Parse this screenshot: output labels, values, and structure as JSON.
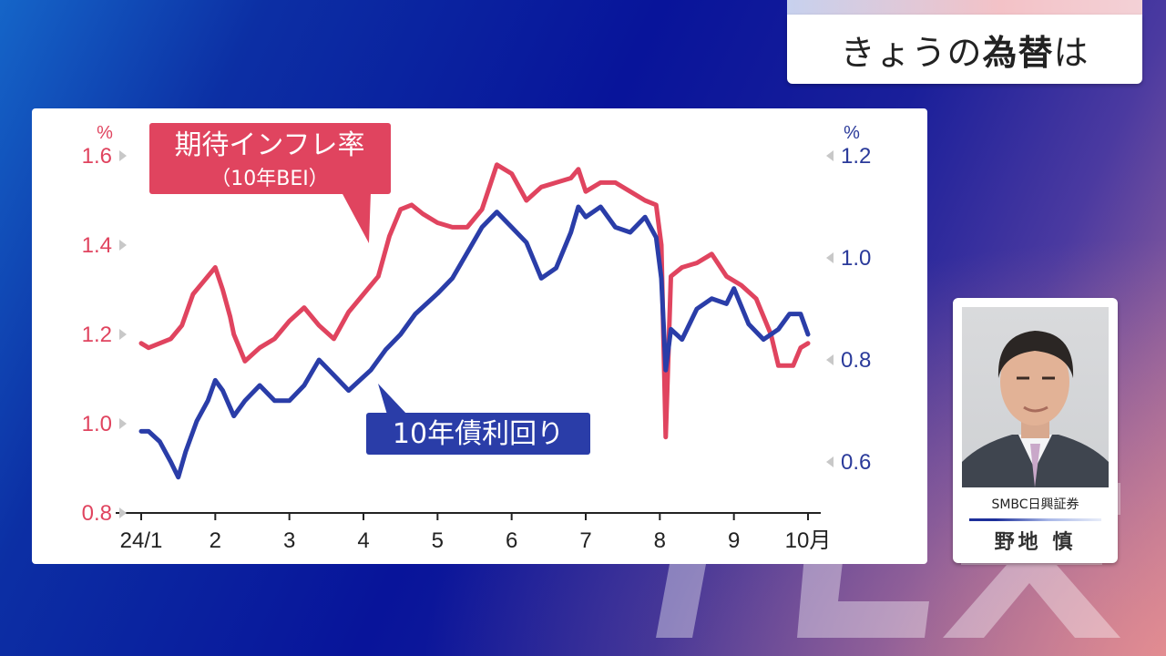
{
  "header": {
    "title_pre": "きょうの",
    "title_strong": "為替",
    "title_post": "は"
  },
  "colors": {
    "bei_series": "#e0445f",
    "yield_series": "#2a3da8",
    "callout_yield_bg": "#2a3da8",
    "callout_bei_bg": "#e0445f"
  },
  "chart_data": {
    "type": "line",
    "x_tick_labels": [
      "24/1",
      "2",
      "3",
      "4",
      "5",
      "6",
      "7",
      "8",
      "9",
      "10月"
    ],
    "left_axis": {
      "unit": "%",
      "ylim": [
        0.8,
        1.6
      ],
      "ticks": [
        "0.8",
        "1.0",
        "1.2",
        "1.4",
        "1.6"
      ]
    },
    "right_axis": {
      "unit": "%",
      "ylim": [
        0.5,
        1.2
      ],
      "ticks": [
        "0.6",
        "0.8",
        "1.0",
        "1.2"
      ]
    },
    "grid": false,
    "series": [
      {
        "name": "期待インフレ率",
        "sublabel": "（10年BEI）",
        "axis": "left",
        "x": [
          1.0,
          1.1,
          1.25,
          1.4,
          1.55,
          1.7,
          1.85,
          2.0,
          2.1,
          2.2,
          2.25,
          2.4,
          2.6,
          2.8,
          3.0,
          3.2,
          3.4,
          3.6,
          3.8,
          4.0,
          4.1,
          4.2,
          4.35,
          4.5,
          4.65,
          4.8,
          5.0,
          5.2,
          5.4,
          5.6,
          5.7,
          5.8,
          6.0,
          6.2,
          6.4,
          6.6,
          6.8,
          6.9,
          7.0,
          7.2,
          7.4,
          7.6,
          7.8,
          7.95,
          8.02,
          8.08,
          8.15,
          8.3,
          8.5,
          8.7,
          8.9,
          9.1,
          9.3,
          9.5,
          9.6,
          9.8,
          9.9,
          10.0
        ],
        "values": [
          1.18,
          1.17,
          1.18,
          1.19,
          1.22,
          1.29,
          1.32,
          1.35,
          1.3,
          1.24,
          1.2,
          1.14,
          1.17,
          1.19,
          1.23,
          1.26,
          1.22,
          1.19,
          1.25,
          1.29,
          1.31,
          1.33,
          1.42,
          1.48,
          1.49,
          1.47,
          1.45,
          1.44,
          1.44,
          1.48,
          1.53,
          1.58,
          1.56,
          1.5,
          1.53,
          1.54,
          1.55,
          1.57,
          1.52,
          1.54,
          1.54,
          1.52,
          1.5,
          1.49,
          1.4,
          0.97,
          1.33,
          1.35,
          1.36,
          1.38,
          1.33,
          1.31,
          1.28,
          1.2,
          1.13,
          1.13,
          1.17,
          1.18
        ]
      },
      {
        "name": "10年債利回り",
        "axis": "right",
        "x": [
          1.0,
          1.1,
          1.25,
          1.4,
          1.5,
          1.6,
          1.75,
          1.9,
          2.0,
          2.1,
          2.25,
          2.4,
          2.6,
          2.8,
          3.0,
          3.2,
          3.4,
          3.6,
          3.8,
          3.95,
          4.1,
          4.3,
          4.5,
          4.7,
          5.0,
          5.2,
          5.4,
          5.6,
          5.8,
          6.0,
          6.2,
          6.4,
          6.6,
          6.8,
          6.9,
          7.0,
          7.2,
          7.4,
          7.6,
          7.8,
          7.95,
          8.02,
          8.08,
          8.15,
          8.3,
          8.5,
          8.7,
          8.9,
          9.0,
          9.2,
          9.4,
          9.6,
          9.75,
          9.9,
          10.0
        ],
        "values": [
          0.66,
          0.66,
          0.64,
          0.6,
          0.57,
          0.62,
          0.68,
          0.72,
          0.76,
          0.74,
          0.69,
          0.72,
          0.75,
          0.72,
          0.72,
          0.75,
          0.8,
          0.77,
          0.74,
          0.76,
          0.78,
          0.82,
          0.85,
          0.89,
          0.93,
          0.96,
          1.01,
          1.06,
          1.09,
          1.06,
          1.03,
          0.96,
          0.98,
          1.05,
          1.1,
          1.08,
          1.1,
          1.06,
          1.05,
          1.08,
          1.04,
          0.96,
          0.78,
          0.86,
          0.84,
          0.9,
          0.92,
          0.91,
          0.94,
          0.87,
          0.84,
          0.86,
          0.89,
          0.89,
          0.85
        ]
      }
    ]
  },
  "analyst": {
    "company": "SMBC日興証券",
    "name": "野地 慎"
  }
}
